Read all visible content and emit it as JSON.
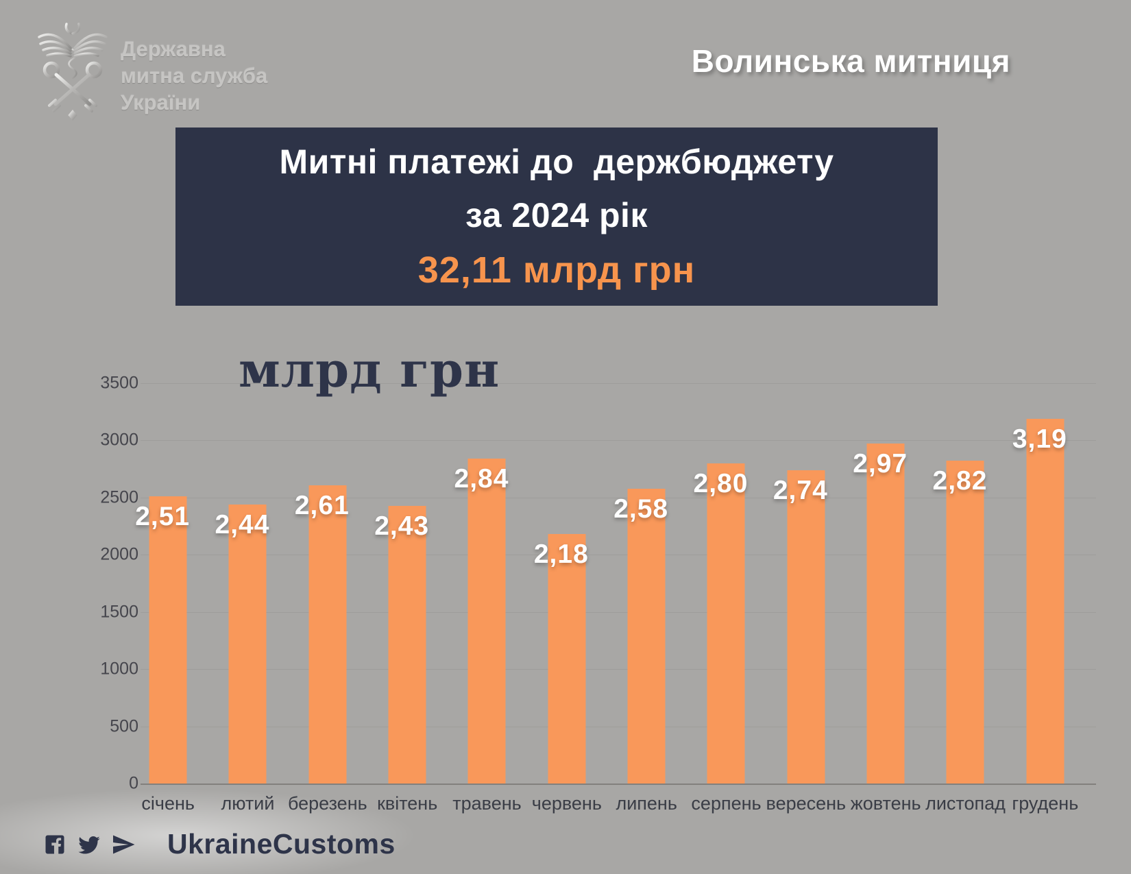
{
  "page": {
    "background": "#a8a7a5"
  },
  "logo": {
    "org_lines": [
      "Державна",
      "митна служба",
      "України"
    ]
  },
  "header": {
    "region_title": "Волинська митниця"
  },
  "title_card": {
    "line1": "Митні платежі до  держбюджету",
    "line2": "за 2024 рік",
    "amount": "32,11 млрд грн",
    "bg_color": "#2d3347",
    "amount_color": "#f7944d"
  },
  "chart_data": {
    "type": "bar",
    "title": "млрд грн",
    "categories": [
      "січень",
      "лютий",
      "березень",
      "квітень",
      "травень",
      "червень",
      "липень",
      "серпень",
      "вересень",
      "жовтень",
      "листопад",
      "грудень"
    ],
    "values": [
      2510,
      2440,
      2610,
      2430,
      2840,
      2180,
      2580,
      2800,
      2740,
      2970,
      2820,
      3190
    ],
    "bar_labels": [
      "2,51",
      "2,44",
      "2,61",
      "2,43",
      "2,84",
      "2,18",
      "2,58",
      "2,80",
      "2,74",
      "2,97",
      "2,82",
      "3,19"
    ],
    "xlabel": "",
    "ylabel": "млрд грн",
    "ylim": [
      0,
      3500
    ],
    "yticks": [
      0,
      500,
      1000,
      1500,
      2000,
      2500,
      3000,
      3500
    ],
    "grid": true,
    "legend_position": "none",
    "bar_color": "#f9985a"
  },
  "footer": {
    "icons": [
      "facebook-icon",
      "twitter-icon",
      "telegram-icon"
    ],
    "handle": "UkraineCustoms"
  }
}
